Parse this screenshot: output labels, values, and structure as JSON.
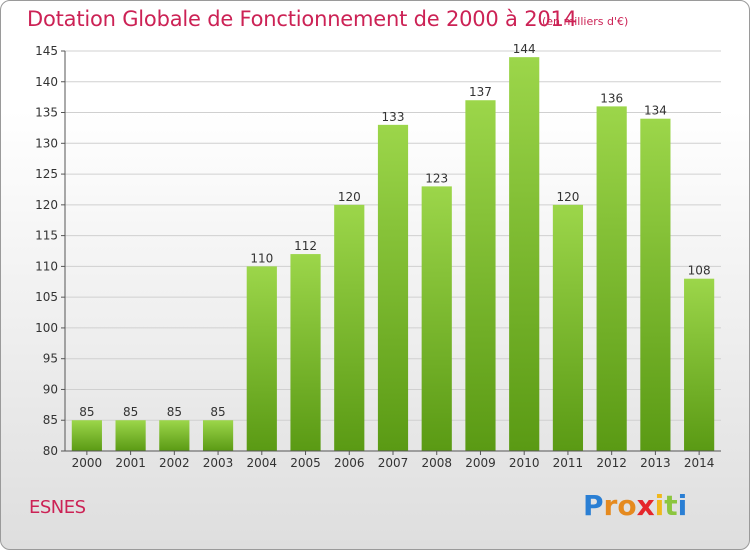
{
  "header": {
    "title": "Dotation Globale de Fonctionnement de 2000 à 2014",
    "unit_note": "(en milliers d'€)"
  },
  "footer": {
    "commune": "ESNES",
    "brand_letters": [
      "P",
      "r",
      "o",
      "x",
      "i",
      "t",
      "i"
    ]
  },
  "colors": {
    "title": "#cc2255",
    "bar_top": "#9cd64a",
    "bar_bottom": "#5a9a14",
    "grid": "#d0d0d0",
    "axis": "#555555"
  },
  "chart_data": {
    "type": "bar",
    "title": "Dotation Globale de Fonctionnement de 2000 à 2014",
    "xlabel": "",
    "ylabel": "",
    "categories": [
      "2000",
      "2001",
      "2002",
      "2003",
      "2004",
      "2005",
      "2006",
      "2007",
      "2008",
      "2009",
      "2010",
      "2011",
      "2012",
      "2013",
      "2014"
    ],
    "values": [
      85,
      85,
      85,
      85,
      110,
      112,
      120,
      133,
      123,
      137,
      144,
      120,
      136,
      134,
      108
    ],
    "ylim": [
      80,
      145
    ],
    "yticks": [
      80,
      85,
      90,
      95,
      100,
      105,
      110,
      115,
      120,
      125,
      130,
      135,
      140,
      145
    ],
    "grid": true,
    "legend": "none"
  }
}
